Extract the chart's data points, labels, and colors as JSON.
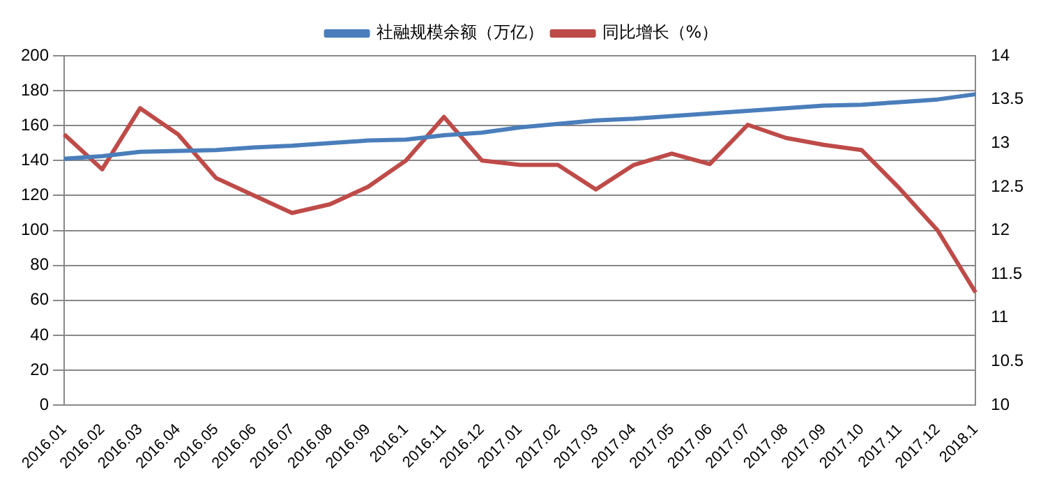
{
  "chart_data": {
    "type": "line",
    "categories": [
      "2016.01",
      "2016.02",
      "2016.03",
      "2016.04",
      "2016.05",
      "2016.06",
      "2016.07",
      "2016.08",
      "2016.09",
      "2016.1",
      "2016.11",
      "2016.12",
      "2017.01",
      "2017.02",
      "2017.03",
      "2017.04",
      "2017.05",
      "2017.06",
      "2017.07",
      "2017.08",
      "2017.09",
      "2017.10",
      "2017.11",
      "2017.12",
      "2018.1"
    ],
    "series": [
      {
        "name": "社融规模余额（万亿）",
        "color": "#4a7ebb",
        "values": [
          141,
          142.5,
          145,
          145.5,
          146,
          147.5,
          148.5,
          150,
          151.5,
          152,
          154.5,
          156,
          159,
          161,
          163,
          164,
          165.5,
          167,
          168.5,
          170,
          171.5,
          172,
          173.5,
          175,
          178
        ]
      },
      {
        "name": "同比增长（%）",
        "color": "#be4b48",
        "axis": "y2",
        "values": [
          13.1,
          12.7,
          13.4,
          13.1,
          12.6,
          12.4,
          12.2,
          12.3,
          12.5,
          12.8,
          13.3,
          12.8,
          12.75,
          12.75,
          12.47,
          12.75,
          12.88,
          12.76,
          13.21,
          13.06,
          12.98,
          12.92,
          12.48,
          12.0,
          11.29
        ]
      }
    ],
    "ylim": [
      0,
      200
    ],
    "yticks": [
      0,
      20,
      40,
      60,
      80,
      100,
      120,
      140,
      160,
      180,
      200
    ],
    "y2lim": [
      10,
      14
    ],
    "y2ticks": [
      10,
      10.5,
      11,
      11.5,
      12,
      12.5,
      13,
      13.5,
      14
    ],
    "grid": "y",
    "legend": "top",
    "marker": "none",
    "line_style": "solid"
  }
}
